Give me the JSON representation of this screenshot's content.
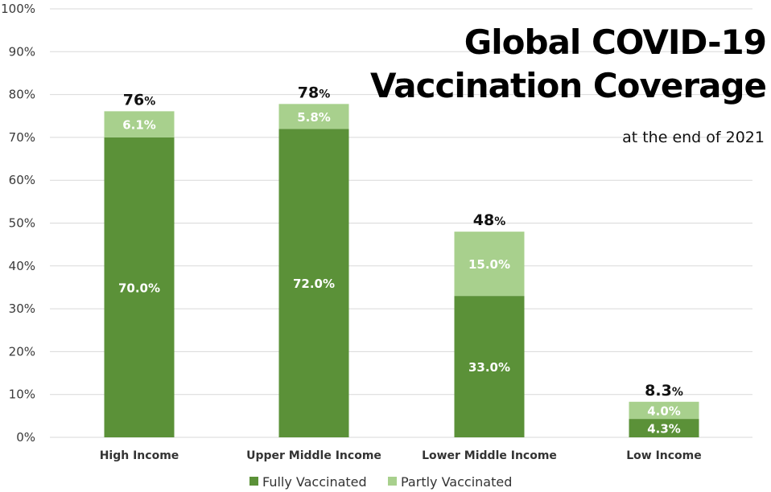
{
  "chart_data": {
    "type": "bar",
    "stacked": true,
    "title_line1": "Global COVID-19",
    "title_line2": "Vaccination Coverage",
    "subtitle": "at the end of 2021",
    "categories": [
      "High Income",
      "Upper Middle Income",
      "Lower Middle Income",
      "Low Income"
    ],
    "series": [
      {
        "name": "Fully Vaccinated",
        "color": "#5b9138",
        "values": [
          70.0,
          72.0,
          33.0,
          4.3
        ],
        "labels": [
          "70.0%",
          "72.0%",
          "33.0%",
          "4.3%"
        ]
      },
      {
        "name": "Partly Vaccinated",
        "color": "#a8d08d",
        "values": [
          6.1,
          5.8,
          15.0,
          4.0
        ],
        "labels": [
          "6.1%",
          "5.8%",
          "15.0%",
          "4.0%"
        ]
      }
    ],
    "totals": [
      {
        "num": "76",
        "pct": "%"
      },
      {
        "num": "78",
        "pct": "%"
      },
      {
        "num": "48",
        "pct": "%"
      },
      {
        "num": "8.3",
        "pct": "%"
      }
    ],
    "ylim": [
      0,
      100
    ],
    "yticks": [
      0,
      10,
      20,
      30,
      40,
      50,
      60,
      70,
      80,
      90,
      100
    ],
    "ytick_labels": [
      "0%",
      "10%",
      "20%",
      "30%",
      "40%",
      "50%",
      "60%",
      "70%",
      "80%",
      "90%",
      "100%"
    ],
    "grid": true,
    "legend": "bottom-center"
  }
}
